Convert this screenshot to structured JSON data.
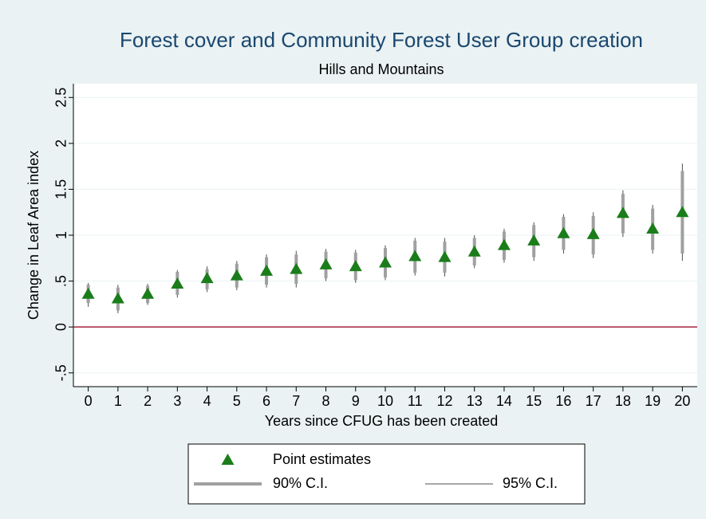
{
  "chart_data": {
    "type": "scatter",
    "title": "Forest cover and Community Forest User Group creation",
    "subtitle": "Hills and Mountains",
    "x_label": "Years since CFUG has been created",
    "y_label": "Change in Leaf Area index",
    "x": [
      0,
      1,
      2,
      3,
      4,
      5,
      6,
      7,
      8,
      9,
      10,
      11,
      12,
      13,
      14,
      15,
      16,
      17,
      18,
      19,
      20
    ],
    "series": [
      {
        "name": "Point estimates",
        "color": "#1a7d1a",
        "marker": "triangle",
        "values": [
          0.36,
          0.31,
          0.36,
          0.47,
          0.53,
          0.56,
          0.61,
          0.63,
          0.68,
          0.66,
          0.7,
          0.77,
          0.76,
          0.82,
          0.89,
          0.94,
          1.02,
          1.01,
          1.24,
          1.07,
          1.25
        ]
      },
      {
        "name": "90% C.I.",
        "color": "#a0a0a0",
        "line_width": 4,
        "lower": [
          0.26,
          0.18,
          0.26,
          0.35,
          0.41,
          0.43,
          0.46,
          0.47,
          0.53,
          0.51,
          0.54,
          0.59,
          0.59,
          0.67,
          0.73,
          0.76,
          0.84,
          0.79,
          1.02,
          0.84,
          0.8
        ],
        "upper": [
          0.46,
          0.43,
          0.45,
          0.6,
          0.63,
          0.69,
          0.76,
          0.79,
          0.82,
          0.81,
          0.86,
          0.94,
          0.93,
          0.97,
          1.04,
          1.11,
          1.2,
          1.21,
          1.45,
          1.29,
          1.7
        ]
      },
      {
        "name": "95% C.I.",
        "color": "#505050",
        "line_width": 1,
        "lower": [
          0.22,
          0.15,
          0.24,
          0.32,
          0.38,
          0.4,
          0.43,
          0.43,
          0.5,
          0.48,
          0.51,
          0.56,
          0.55,
          0.64,
          0.7,
          0.72,
          0.8,
          0.75,
          0.98,
          0.8,
          0.72
        ],
        "upper": [
          0.48,
          0.46,
          0.47,
          0.62,
          0.66,
          0.72,
          0.79,
          0.83,
          0.85,
          0.84,
          0.89,
          0.97,
          0.97,
          1.0,
          1.07,
          1.14,
          1.23,
          1.25,
          1.49,
          1.33,
          1.78
        ]
      }
    ],
    "reference_line": {
      "value": 0,
      "color": "#a3243b"
    },
    "xlim": [
      -0.5,
      20.5
    ],
    "ylim": [
      -0.65,
      2.65
    ],
    "xticks": [
      0,
      1,
      2,
      3,
      4,
      5,
      6,
      7,
      8,
      9,
      10,
      11,
      12,
      13,
      14,
      15,
      16,
      17,
      18,
      19,
      20
    ],
    "yticks": [
      {
        "value": -0.5,
        "label": "-.5"
      },
      0,
      {
        "value": 0.5,
        "label": ".5"
      },
      1,
      {
        "value": 1.5,
        "label": "1.5"
      },
      2,
      {
        "value": 2.5,
        "label": "2.5"
      }
    ],
    "grid": true
  }
}
